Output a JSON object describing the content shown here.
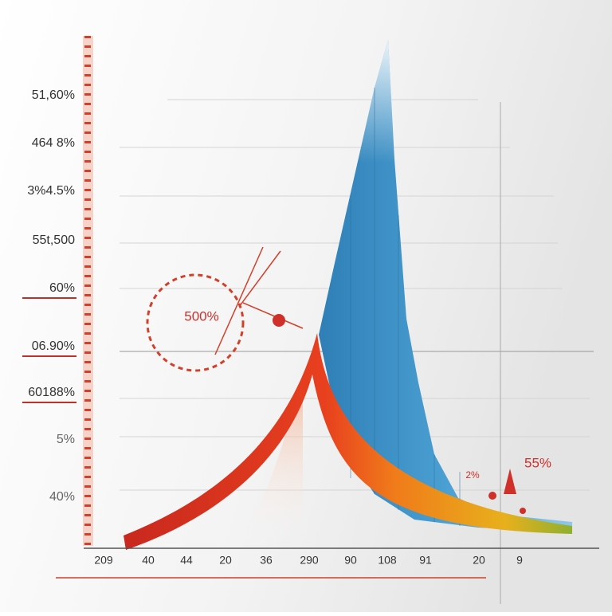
{
  "y_labels": [
    "51,60%",
    "464 8%",
    "3%4.5%",
    "55t,500",
    "60%",
    "06.90%",
    "60188%",
    "5%",
    "40%"
  ],
  "x_labels": [
    "209",
    "40",
    "44",
    "20",
    "36",
    "290",
    "90",
    "108",
    "91",
    "20",
    "9"
  ],
  "annotations": {
    "circle": "500%",
    "right": "55%",
    "small": "2%"
  }
}
